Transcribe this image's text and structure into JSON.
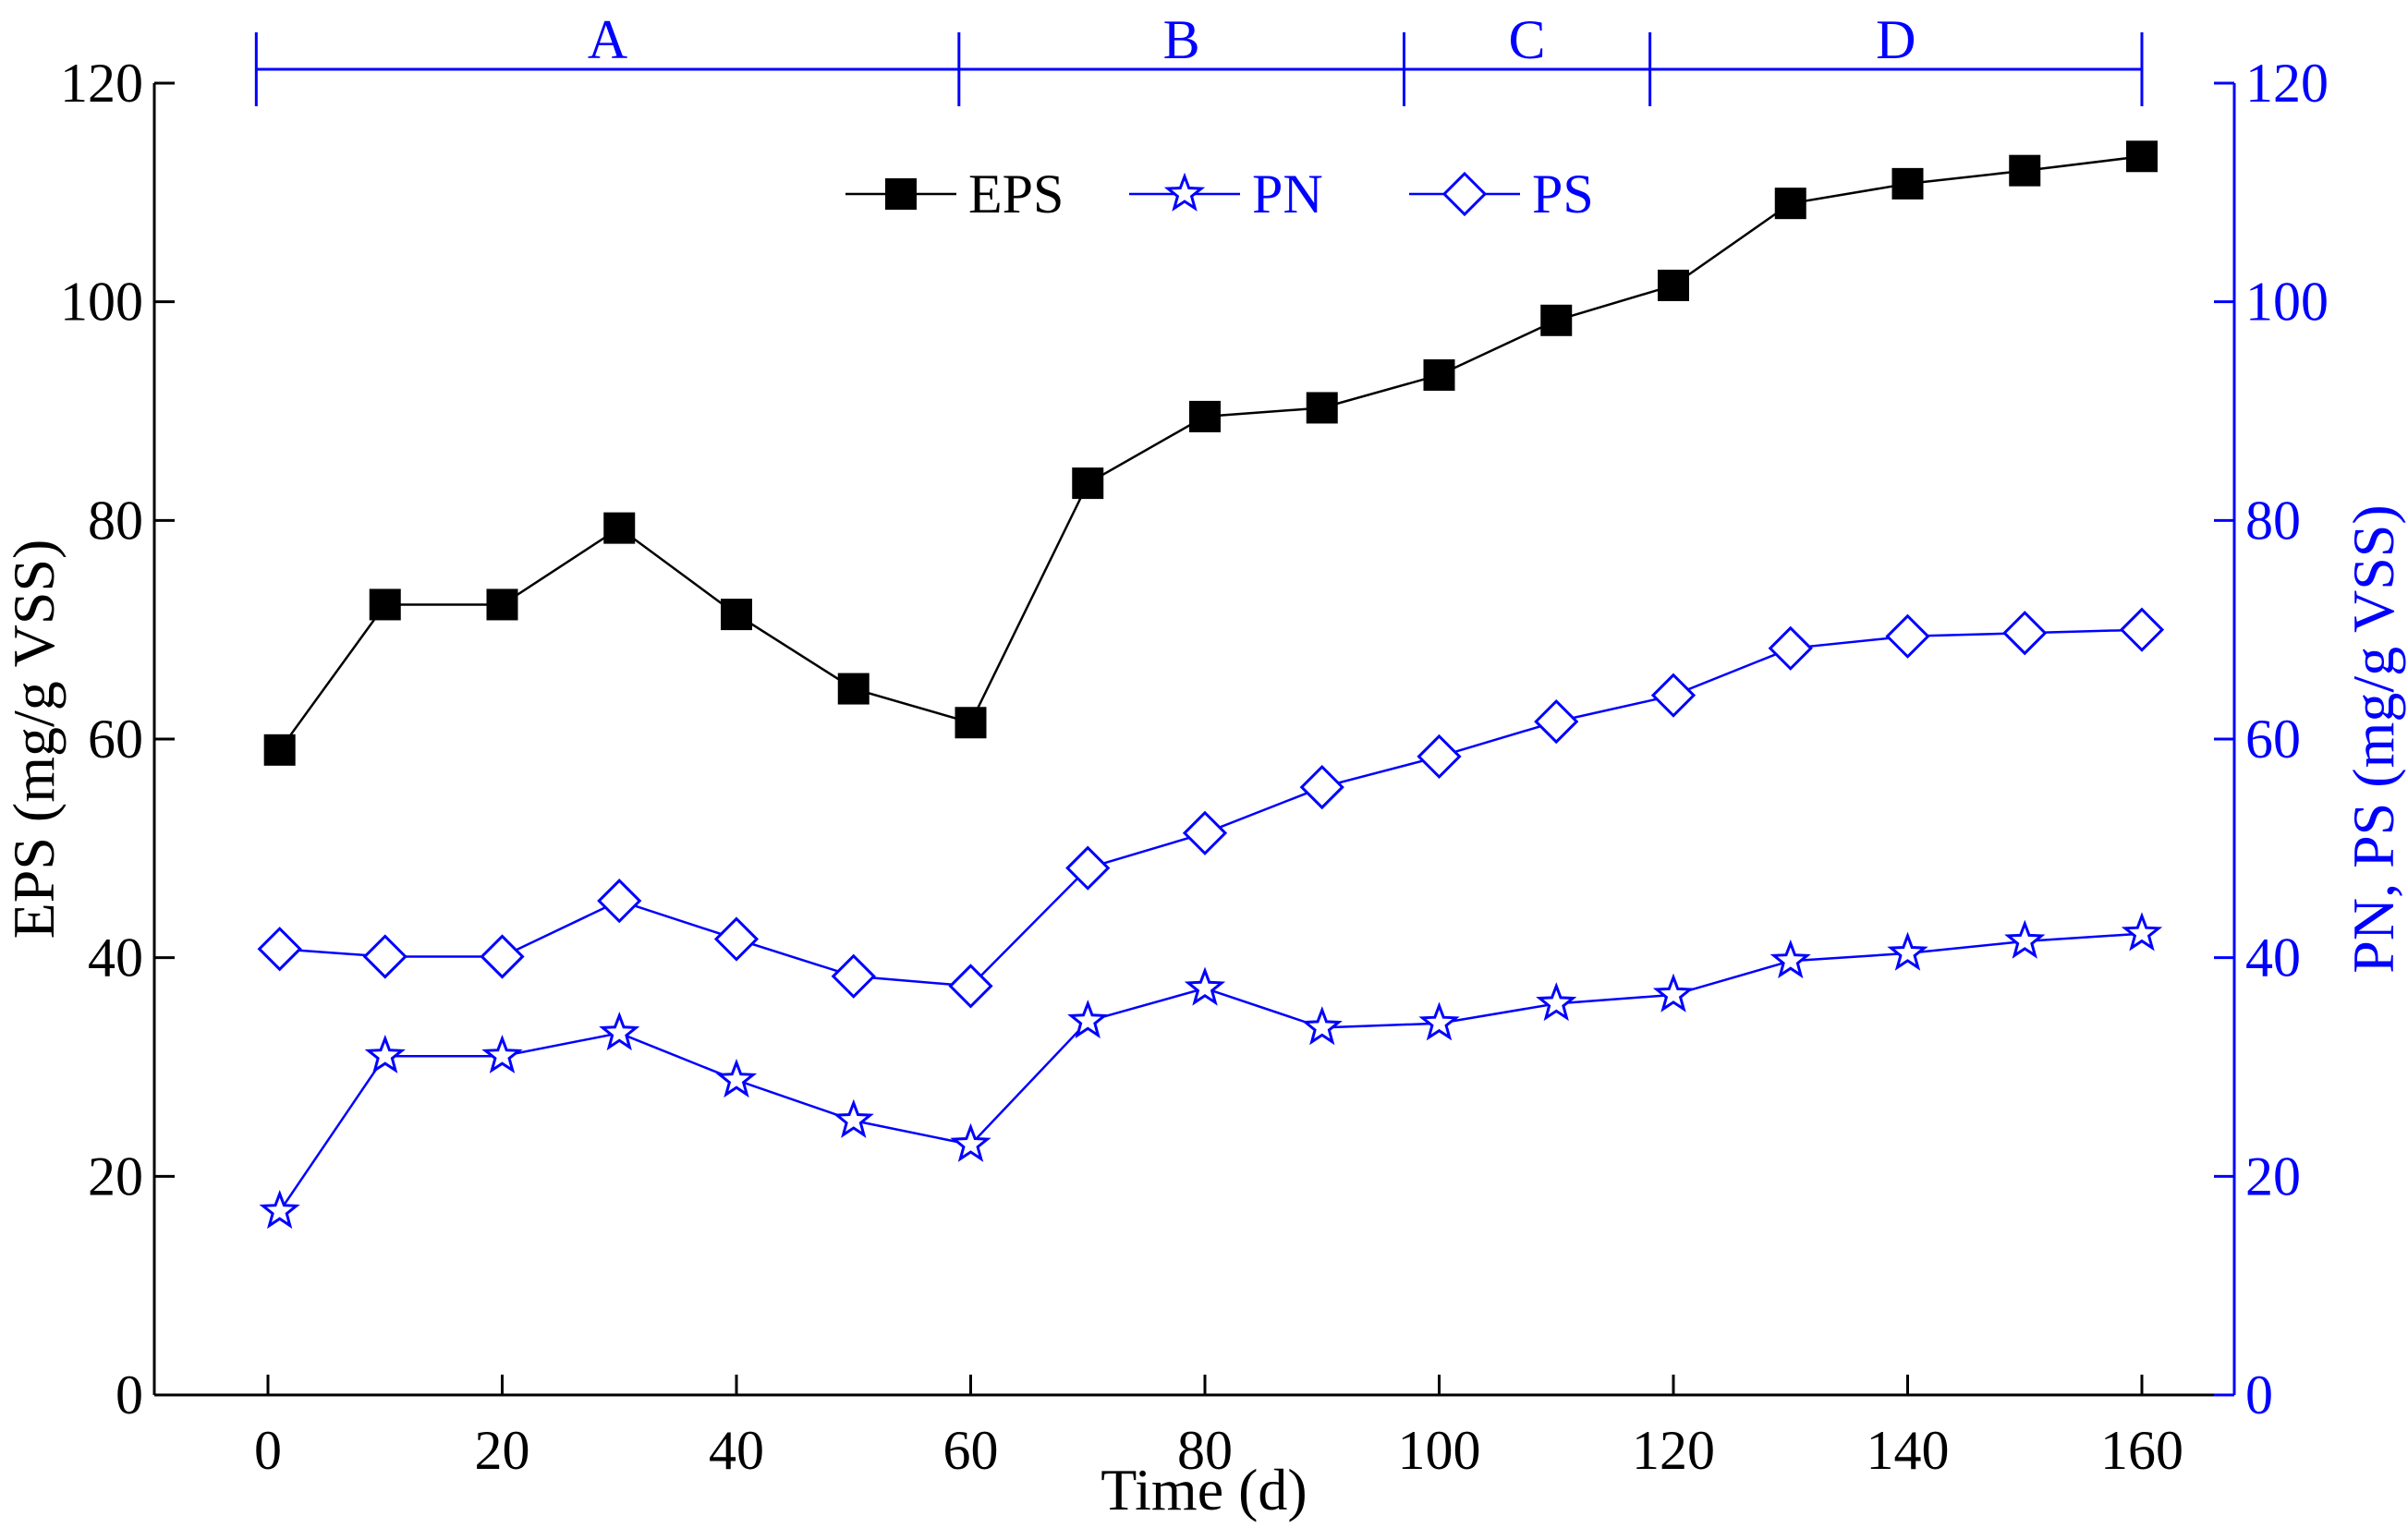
{
  "chart_data": {
    "type": "line",
    "title": "",
    "xlabel": "Time (d)",
    "ylabel_left": "EPS (mg/g VSS)",
    "ylabel_right": "PN, PS (mg/g VSS)",
    "xlim": [
      -10,
      168
    ],
    "ylim_left": [
      0,
      120
    ],
    "ylim_right": [
      0,
      120
    ],
    "x_ticks": [
      0,
      20,
      40,
      60,
      80,
      100,
      120,
      140,
      160
    ],
    "y_ticks_left": [
      0,
      20,
      40,
      60,
      80,
      100,
      120
    ],
    "y_ticks_right": [
      0,
      20,
      40,
      60,
      80,
      100,
      120
    ],
    "grid": false,
    "legend_position": "top-center",
    "phases": [
      {
        "label": "A",
        "start": -1,
        "end": 59
      },
      {
        "label": "B",
        "start": 59,
        "end": 97
      },
      {
        "label": "C",
        "start": 97,
        "end": 118
      },
      {
        "label": "D",
        "start": 118,
        "end": 160
      }
    ],
    "series": [
      {
        "name": "EPS",
        "axis": "left",
        "marker": "square",
        "color": "#000000",
        "x": [
          1,
          10,
          20,
          30,
          40,
          50,
          60,
          70,
          80,
          90,
          100,
          110,
          120,
          130,
          140,
          150,
          160
        ],
        "values": [
          59,
          72.3,
          72.3,
          79.3,
          71.4,
          64.6,
          61.5,
          83.4,
          89.5,
          90.3,
          93.3,
          98.3,
          101.5,
          109,
          110.8,
          112,
          113.3
        ]
      },
      {
        "name": "PN",
        "axis": "right",
        "marker": "star",
        "color": "#0000ff",
        "x": [
          1,
          10,
          20,
          30,
          40,
          50,
          60,
          70,
          80,
          90,
          100,
          110,
          120,
          130,
          140,
          150,
          160
        ],
        "values": [
          16.8,
          31,
          31,
          33.1,
          28.8,
          25.1,
          22.9,
          34.2,
          37.2,
          33.6,
          34,
          35.8,
          36.6,
          39.7,
          40.4,
          41.5,
          42.2
        ]
      },
      {
        "name": "PS",
        "axis": "right",
        "marker": "diamond",
        "color": "#0000ff",
        "x": [
          1,
          10,
          20,
          30,
          40,
          50,
          60,
          70,
          80,
          90,
          100,
          110,
          120,
          130,
          140,
          150,
          160
        ],
        "values": [
          40.8,
          40.1,
          40.1,
          45.2,
          41.7,
          38.3,
          37.4,
          48.2,
          51.4,
          55.6,
          58.4,
          61.6,
          64,
          68.3,
          69.4,
          69.7,
          70
        ]
      }
    ]
  }
}
